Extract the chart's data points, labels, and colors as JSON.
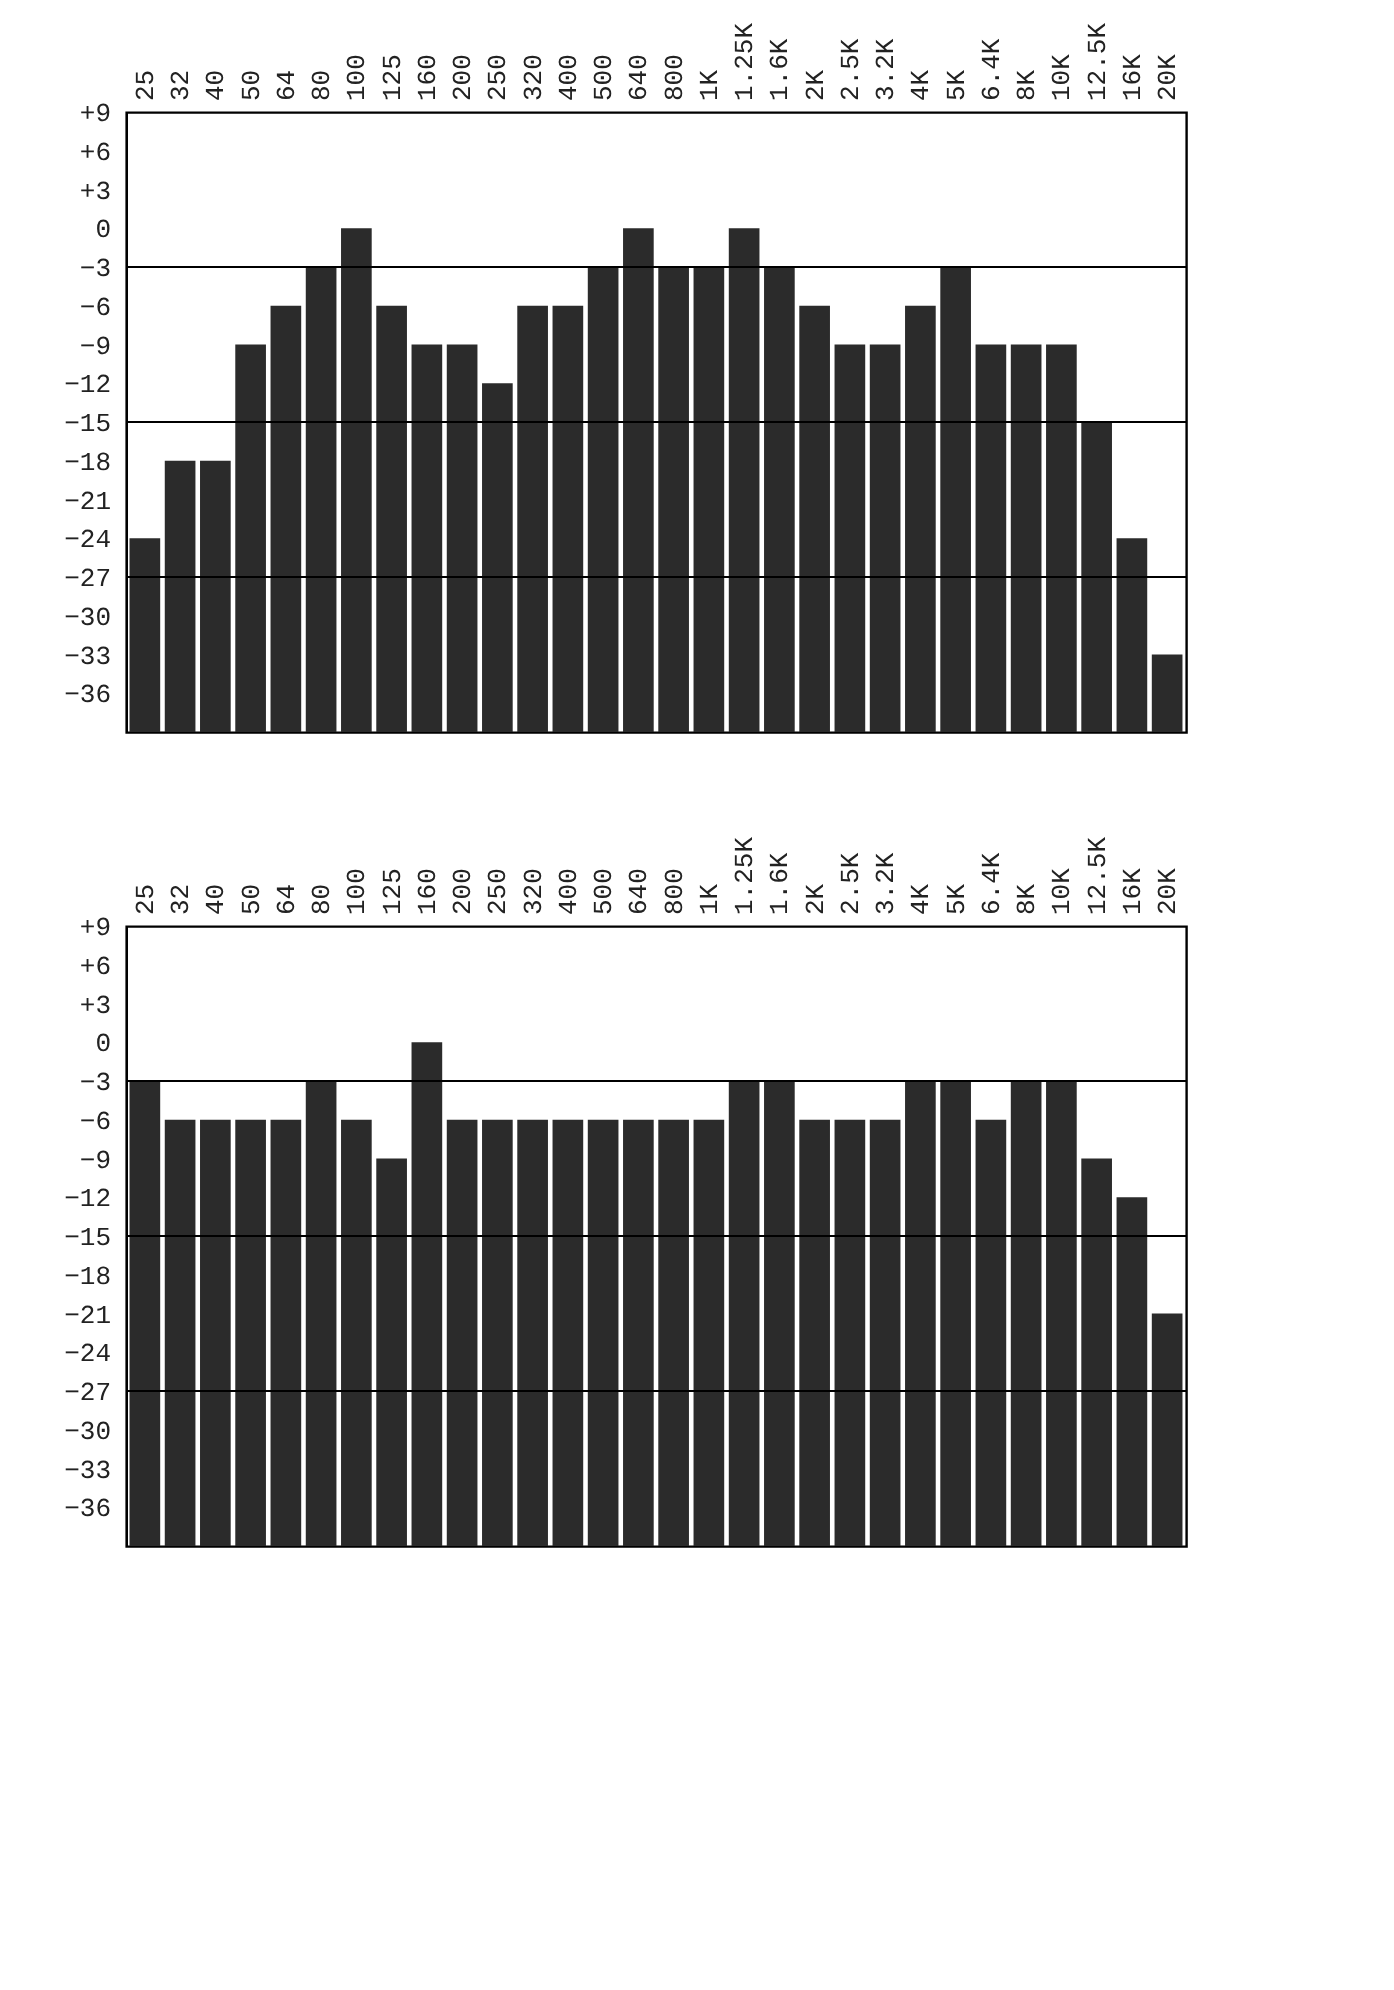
{
  "chart_data": [
    {
      "type": "bar",
      "categories": [
        "25",
        "32",
        "40",
        "50",
        "64",
        "80",
        "100",
        "125",
        "160",
        "200",
        "250",
        "320",
        "400",
        "500",
        "640",
        "800",
        "1K",
        "1.25K",
        "1.6K",
        "2K",
        "2.5K",
        "3.2K",
        "4K",
        "5K",
        "6.4K",
        "8K",
        "10K",
        "12.5K",
        "16K",
        "20K"
      ],
      "base": [
        -39,
        -39,
        -39,
        -39,
        -39,
        -39,
        -39,
        -39,
        -39,
        -39,
        -39,
        -39,
        -39,
        -39,
        -39,
        -39,
        -39,
        -39,
        -39,
        -39,
        -39,
        -39,
        -39,
        -39,
        -39,
        -39,
        -39,
        -39,
        -39,
        -39
      ],
      "values": [
        15,
        21,
        21,
        30,
        33,
        36,
        39,
        33,
        30,
        30,
        27,
        33,
        33,
        36,
        39,
        36,
        36,
        39,
        36,
        33,
        30,
        30,
        33,
        36,
        30,
        30,
        30,
        24,
        15,
        6
      ],
      "color": "#2b2b2b",
      "ylim": [
        -39,
        9
      ],
      "yticks": [
        {
          "value": 9,
          "label": "+9"
        },
        {
          "value": 6,
          "label": "+6"
        },
        {
          "value": 3,
          "label": "+3"
        },
        0,
        -3,
        -6,
        -9,
        -12,
        -15,
        -18,
        -21,
        -24,
        -27,
        -30,
        -33,
        -36
      ],
      "ref_lines": [
        {
          "axis": "y",
          "value": -3
        },
        {
          "axis": "y",
          "value": -15
        },
        {
          "axis": "y",
          "value": -27
        }
      ],
      "grid": false
    },
    {
      "type": "bar",
      "categories": [
        "25",
        "32",
        "40",
        "50",
        "64",
        "80",
        "100",
        "125",
        "160",
        "200",
        "250",
        "320",
        "400",
        "500",
        "640",
        "800",
        "1K",
        "1.25K",
        "1.6K",
        "2K",
        "2.5K",
        "3.2K",
        "4K",
        "5K",
        "6.4K",
        "8K",
        "10K",
        "12.5K",
        "16K",
        "20K"
      ],
      "base": [
        -39,
        -39,
        -39,
        -39,
        -39,
        -39,
        -39,
        -39,
        -39,
        -39,
        -39,
        -39,
        -39,
        -39,
        -39,
        -39,
        -39,
        -39,
        -39,
        -39,
        -39,
        -39,
        -39,
        -39,
        -39,
        -39,
        -39,
        -39,
        -39,
        -39
      ],
      "values": [
        36,
        33,
        33,
        33,
        33,
        36,
        33,
        30,
        39,
        33,
        33,
        33,
        33,
        33,
        33,
        33,
        33,
        36,
        36,
        33,
        33,
        33,
        36,
        36,
        33,
        36,
        36,
        30,
        27,
        18
      ],
      "color": "#2b2b2b",
      "ylim": [
        -39,
        9
      ],
      "yticks": [
        {
          "value": 9,
          "label": "+9"
        },
        {
          "value": 6,
          "label": "+6"
        },
        {
          "value": 3,
          "label": "+3"
        },
        0,
        -3,
        -6,
        -9,
        -12,
        -15,
        -18,
        -21,
        -24,
        -27,
        -30,
        -33,
        -36
      ],
      "ref_lines": [
        {
          "axis": "y",
          "value": -3
        },
        {
          "axis": "y",
          "value": -15
        },
        {
          "axis": "y",
          "value": -27
        }
      ],
      "grid": false
    }
  ]
}
